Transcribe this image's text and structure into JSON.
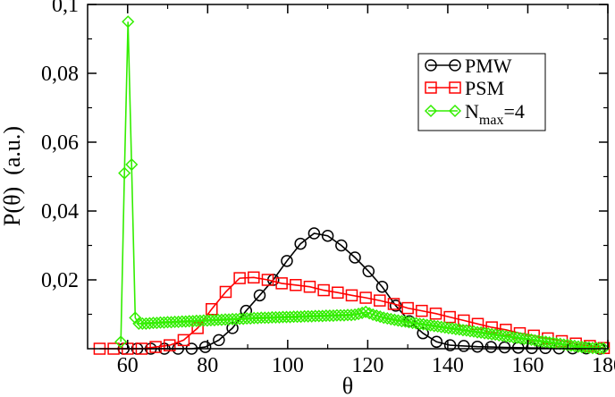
{
  "chart_data": {
    "type": "line",
    "xlabel": "θ",
    "ylabel": "P(θ)  (a.u.)",
    "xlim": [
      50,
      180
    ],
    "ylim": [
      0,
      0.1
    ],
    "x_ticks": [
      60,
      80,
      100,
      120,
      140,
      160,
      180
    ],
    "x_tick_labels": [
      "60",
      "80",
      "100",
      "120",
      "140",
      "160",
      "180"
    ],
    "y_ticks": [
      0.02,
      0.04,
      0.06,
      0.08,
      0.1
    ],
    "y_tick_labels": [
      "0,02",
      "0,04",
      "0,06",
      "0,08",
      "0,1"
    ],
    "grid": false,
    "legend_position": "top-right",
    "series": [
      {
        "name": "PMW",
        "color": "#000000",
        "marker": "circle",
        "x": [
          59,
          62.4,
          65.8,
          69.2,
          72.6,
          76,
          79.4,
          82.8,
          86.2,
          89.6,
          93,
          96.4,
          99.8,
          103.2,
          106.6,
          110,
          113.4,
          116.8,
          120.2,
          123.6,
          127,
          130.4,
          133.8,
          137.2,
          140.6,
          144,
          147.4,
          150.8,
          154.2,
          157.6,
          161,
          164.4,
          167.8,
          171.2,
          174.6,
          178
        ],
        "y": [
          0,
          0,
          0,
          0,
          0,
          0,
          0.0005,
          0.0025,
          0.006,
          0.011,
          0.0155,
          0.02,
          0.0255,
          0.0305,
          0.0335,
          0.0328,
          0.03,
          0.0265,
          0.0225,
          0.018,
          0.0125,
          0.008,
          0.0045,
          0.002,
          0.001,
          0.0008,
          0.0006,
          0.0005,
          0.0004,
          0.0003,
          0.0002,
          0.0002,
          0.0001,
          0.0001,
          0.0001,
          0
        ]
      },
      {
        "name": "PSM",
        "color": "#ff0000",
        "marker": "square",
        "x": [
          53,
          56.5,
          60,
          63.5,
          67,
          70.5,
          74,
          77.5,
          81,
          84.5,
          88,
          91.5,
          95,
          98.5,
          102,
          105.5,
          109,
          112.5,
          116,
          119.5,
          123,
          126.5,
          130,
          133.5,
          137,
          140.5,
          144,
          147.5,
          151,
          154.5,
          158,
          161.5,
          165,
          168.5,
          172,
          175.5,
          179
        ],
        "y": [
          0,
          0,
          0,
          0,
          0.0005,
          0.001,
          0.0025,
          0.006,
          0.0115,
          0.0165,
          0.0205,
          0.0207,
          0.02,
          0.019,
          0.0185,
          0.018,
          0.017,
          0.0163,
          0.0155,
          0.0148,
          0.014,
          0.013,
          0.0118,
          0.011,
          0.0102,
          0.0092,
          0.0082,
          0.0072,
          0.0062,
          0.0055,
          0.0045,
          0.0038,
          0.003,
          0.0022,
          0.0015,
          0.0008,
          0.0002
        ]
      },
      {
        "name": "N",
        "name_sub": "max",
        "name_suffix": "=4",
        "color": "#33ee00",
        "marker": "diamond",
        "x": [
          58.3,
          59.2,
          60.1,
          61,
          61.9,
          62.8,
          63.7,
          64.6,
          65.5,
          66.4,
          67.3,
          68.2,
          69.1,
          70,
          70.9,
          71.8,
          72.7,
          73.6,
          74.5,
          75.4,
          76.3,
          77.2,
          78.1,
          79,
          79.9,
          80.8,
          81.7,
          82.6,
          83.5,
          84.4,
          85.3,
          86.2,
          87.1,
          88,
          88.9,
          89.8,
          90.7,
          91.6,
          92.5,
          93.4,
          94.3,
          95.2,
          96.1,
          97,
          97.9,
          98.8,
          99.7,
          100.6,
          101.5,
          102.4,
          103.3,
          104.2,
          105.1,
          106,
          106.9,
          107.8,
          108.7,
          109.6,
          110.5,
          111.4,
          112.3,
          113.2,
          114.1,
          115,
          115.9,
          116.8,
          117.7,
          118.6,
          119.5,
          120.4,
          121.3,
          122.2,
          123.1,
          124,
          124.9,
          125.8,
          126.7,
          127.6,
          128.5,
          129.4,
          130.3,
          131.2,
          132.1,
          133,
          133.9,
          134.8,
          135.7,
          136.6,
          137.5,
          138.4,
          139.3,
          140.2,
          141.1,
          142,
          142.9,
          143.8,
          144.7,
          145.6,
          146.5,
          147.4,
          148.3,
          149.2,
          150.1,
          151,
          151.9,
          152.8,
          153.7,
          154.6,
          155.5,
          156.4,
          157.3,
          158.2,
          159.1,
          160,
          160.9,
          161.8,
          162.7,
          163.6,
          164.5,
          165.4,
          166.3,
          167.2,
          168.1,
          169,
          169.9,
          170.8,
          171.7,
          172.6,
          173.5,
          174.4,
          175.3,
          176.2,
          177.1,
          178,
          178.9
        ],
        "y": [
          0.002,
          0.051,
          0.095,
          0.0535,
          0.009,
          0.0073,
          0.0073,
          0.0073,
          0.0074,
          0.0075,
          0.0075,
          0.0076,
          0.0076,
          0.0077,
          0.0077,
          0.0078,
          0.0078,
          0.0079,
          0.0079,
          0.008,
          0.008,
          0.0081,
          0.0081,
          0.0082,
          0.0082,
          0.0083,
          0.0083,
          0.0084,
          0.0084,
          0.0085,
          0.0085,
          0.0086,
          0.0086,
          0.0087,
          0.0087,
          0.0088,
          0.0088,
          0.0089,
          0.0089,
          0.009,
          0.009,
          0.009,
          0.0091,
          0.0091,
          0.0091,
          0.0092,
          0.0092,
          0.0092,
          0.0093,
          0.0093,
          0.0093,
          0.0094,
          0.0094,
          0.0094,
          0.0095,
          0.0095,
          0.0095,
          0.0096,
          0.0096,
          0.0096,
          0.0097,
          0.0097,
          0.0097,
          0.0098,
          0.0098,
          0.0099,
          0.0101,
          0.0104,
          0.0107,
          0.0103,
          0.0099,
          0.0096,
          0.0093,
          0.009,
          0.0088,
          0.0086,
          0.0084,
          0.0082,
          0.008,
          0.0079,
          0.0077,
          0.0075,
          0.0074,
          0.0072,
          0.0071,
          0.0069,
          0.0068,
          0.0066,
          0.0065,
          0.0063,
          0.0062,
          0.006,
          0.0059,
          0.0057,
          0.0056,
          0.0054,
          0.0053,
          0.0051,
          0.005,
          0.0048,
          0.0047,
          0.0045,
          0.0044,
          0.0042,
          0.0041,
          0.0039,
          0.0038,
          0.0036,
          0.0035,
          0.0033,
          0.0032,
          0.003,
          0.0029,
          0.0027,
          0.0026,
          0.0024,
          0.0023,
          0.0021,
          0.002,
          0.0018,
          0.0017,
          0.0015,
          0.0014,
          0.0012,
          0.0011,
          0.0009,
          0.0008,
          0.0006,
          0.0005,
          0.0004,
          0.0003,
          0.0002,
          0.0002,
          0.0001,
          0.0001
        ]
      }
    ]
  }
}
